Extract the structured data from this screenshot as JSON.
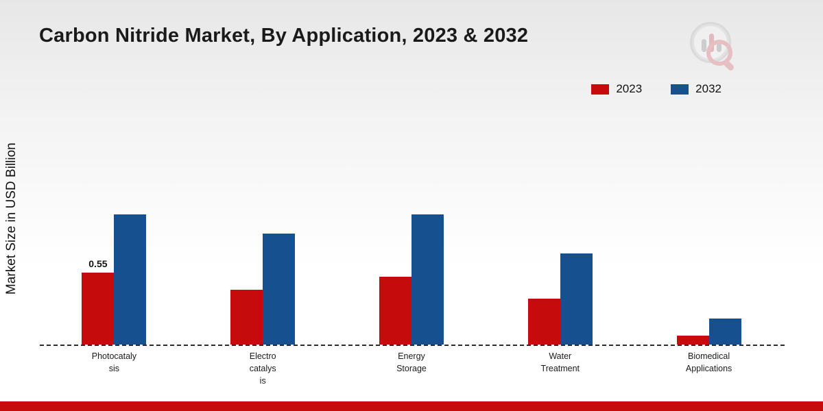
{
  "title": "Carbon Nitride Market, By Application, 2023 & 2032",
  "ylabel": "Market Size in USD Billion",
  "branding": {
    "logo": "market-research-logo",
    "footer_color": "#c50b0b"
  },
  "chart_data": {
    "type": "bar",
    "title": "Carbon Nitride Market, By Application, 2023 & 2032",
    "xlabel": "",
    "ylabel": "Market Size in USD Billion",
    "categories": [
      "Photocatalysis",
      "Electrocatalysis",
      "Energy Storage",
      "Water Treatment",
      "Biomedical Applications"
    ],
    "tick_labels": [
      "Photocataly\nsis",
      "Electro\ncatalys\nis",
      "Energy\nStorage",
      "Water\nTreatment",
      "Biomedical\nApplications"
    ],
    "series": [
      {
        "name": "2023",
        "color": "#c50b0b",
        "values": [
          0.55,
          0.42,
          0.52,
          0.35,
          0.07
        ]
      },
      {
        "name": "2032",
        "color": "#17508f",
        "values": [
          1.0,
          0.85,
          1.0,
          0.7,
          0.2
        ]
      }
    ],
    "annotations": [
      {
        "text": "0.55",
        "series": "2023",
        "category": "Photocatalysis"
      }
    ],
    "ylim": [
      0,
      1.15
    ],
    "grid": false,
    "baseline_style": "dashed",
    "legend_position": "top-right"
  }
}
